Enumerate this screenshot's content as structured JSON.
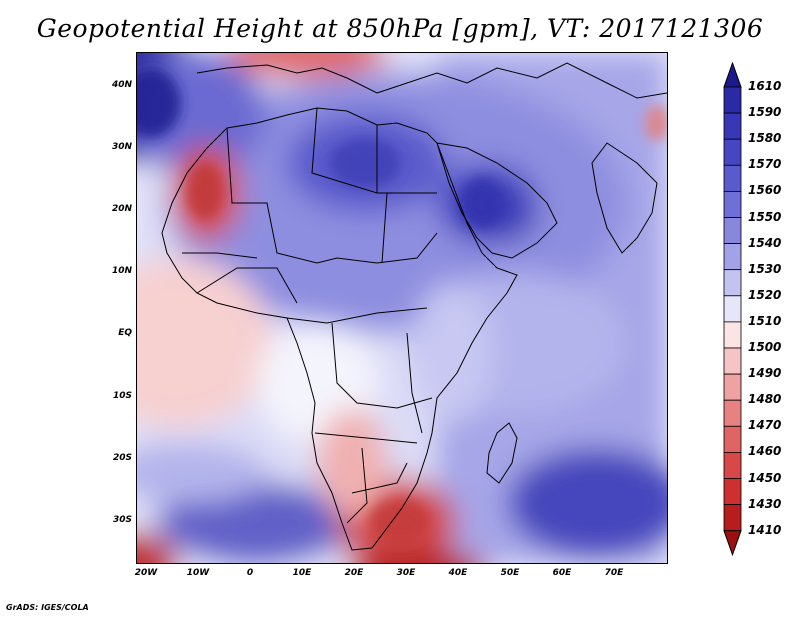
{
  "title": "Geopotential Height at 850hPa [gpm], VT: 2017121306",
  "credit": "GrADS: IGES/COLA",
  "map": {
    "lat_ticks": [
      "40N",
      "30N",
      "20N",
      "10N",
      "EQ",
      "10S",
      "20S",
      "30S"
    ],
    "lon_ticks": [
      "20W",
      "10W",
      "0",
      "10E",
      "20E",
      "30E",
      "40E",
      "50E",
      "60E",
      "70E"
    ],
    "lat_range": [
      -36,
      44
    ],
    "lon_range": [
      -23,
      79
    ]
  },
  "legend": {
    "levels": [
      "1610",
      "1590",
      "1580",
      "1570",
      "1560",
      "1550",
      "1540",
      "1530",
      "1520",
      "1510",
      "1500",
      "1490",
      "1480",
      "1470",
      "1460",
      "1450",
      "1430",
      "1410"
    ],
    "colors": [
      "#1a1a8c",
      "#2a2aa6",
      "#3737b8",
      "#4646c4",
      "#5a5acf",
      "#6f6fd8",
      "#8787e0",
      "#a2a2e9",
      "#c3c3f2",
      "#e6e6fb",
      "#fbe4e4",
      "#f6c4c4",
      "#efa2a2",
      "#e88282",
      "#e06464",
      "#d84848",
      "#ce3030",
      "#b81c1c",
      "#9c1010"
    ]
  }
}
